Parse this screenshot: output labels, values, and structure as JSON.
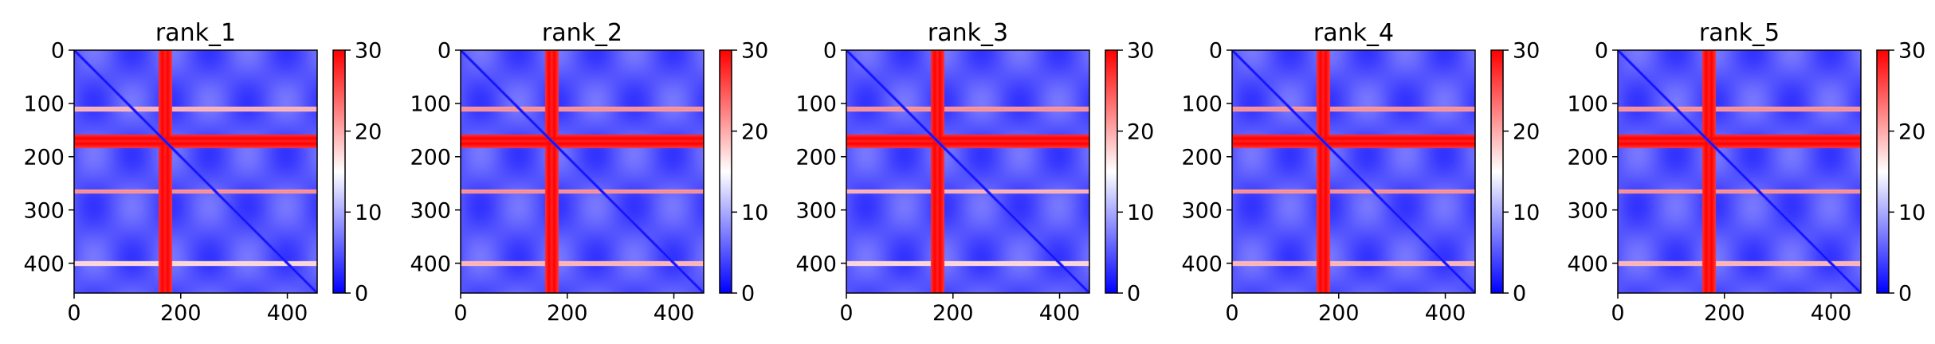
{
  "chart_data": [
    {
      "type": "heatmap",
      "title": "rank_1",
      "x_ticks": [
        "0",
        "200",
        "400"
      ],
      "y_ticks": [
        "0",
        "100",
        "200",
        "300",
        "400"
      ],
      "xlim": [
        0,
        456
      ],
      "ylim": [
        456,
        0
      ],
      "colorbar": {
        "ticks": [
          "0",
          "10",
          "20",
          "30"
        ],
        "range": [
          0,
          30
        ],
        "colormap": "bwr"
      },
      "values": {
        "n": 456,
        "bands": [
          110,
          165,
          175,
          265,
          400
        ],
        "band_values": [
          20,
          30,
          30,
          22,
          18
        ],
        "diagonal": 0,
        "background": 5
      }
    },
    {
      "type": "heatmap",
      "title": "rank_2",
      "x_ticks": [
        "0",
        "200",
        "400"
      ],
      "y_ticks": [
        "0",
        "100",
        "200",
        "300",
        "400"
      ],
      "xlim": [
        0,
        456
      ],
      "ylim": [
        456,
        0
      ],
      "colorbar": {
        "ticks": [
          "0",
          "10",
          "20",
          "30"
        ],
        "range": [
          0,
          30
        ],
        "colormap": "bwr"
      },
      "values": {
        "n": 456,
        "bands": [
          110,
          165,
          175,
          265,
          400
        ],
        "band_values": [
          22,
          30,
          30,
          22,
          20
        ],
        "diagonal": 0,
        "background": 5
      }
    },
    {
      "type": "heatmap",
      "title": "rank_3",
      "x_ticks": [
        "0",
        "200",
        "400"
      ],
      "y_ticks": [
        "0",
        "100",
        "200",
        "300",
        "400"
      ],
      "xlim": [
        0,
        456
      ],
      "ylim": [
        456,
        0
      ],
      "colorbar": {
        "ticks": [
          "0",
          "10",
          "20",
          "30"
        ],
        "range": [
          0,
          30
        ],
        "colormap": "bwr"
      },
      "values": {
        "n": 456,
        "bands": [
          110,
          165,
          175,
          265,
          400
        ],
        "band_values": [
          22,
          30,
          30,
          20,
          18
        ],
        "diagonal": 0,
        "background": 5
      }
    },
    {
      "type": "heatmap",
      "title": "rank_4",
      "x_ticks": [
        "0",
        "200",
        "400"
      ],
      "y_ticks": [
        "0",
        "100",
        "200",
        "300",
        "400"
      ],
      "xlim": [
        0,
        456
      ],
      "ylim": [
        456,
        0
      ],
      "colorbar": {
        "ticks": [
          "0",
          "10",
          "20",
          "30"
        ],
        "range": [
          0,
          30
        ],
        "colormap": "bwr"
      },
      "values": {
        "n": 456,
        "bands": [
          110,
          165,
          175,
          265,
          400
        ],
        "band_values": [
          22,
          30,
          30,
          22,
          20
        ],
        "diagonal": 0,
        "background": 5
      }
    },
    {
      "type": "heatmap",
      "title": "rank_5",
      "x_ticks": [
        "0",
        "200",
        "400"
      ],
      "y_ticks": [
        "0",
        "100",
        "200",
        "300",
        "400"
      ],
      "xlim": [
        0,
        456
      ],
      "ylim": [
        456,
        0
      ],
      "colorbar": {
        "ticks": [
          "0",
          "10",
          "20",
          "30"
        ],
        "range": [
          0,
          30
        ],
        "colormap": "bwr"
      },
      "values": {
        "n": 456,
        "bands": [
          110,
          165,
          175,
          265,
          400
        ],
        "band_values": [
          22,
          30,
          30,
          22,
          20
        ],
        "diagonal": 0,
        "background": 5
      }
    }
  ],
  "colors": {
    "low": "#0000ff",
    "mid": "#ffffff",
    "high": "#ff0000",
    "axis": "#000000"
  }
}
